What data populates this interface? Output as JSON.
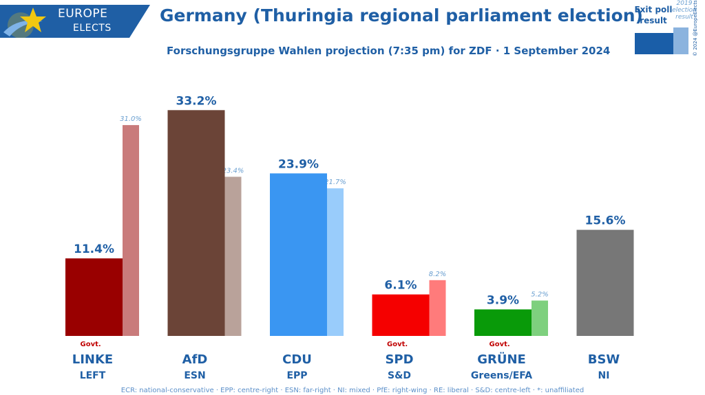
{
  "logo": {
    "line1": "EUROPE",
    "line2": "ELECTS"
  },
  "header": {
    "title": "Germany (Thuringia regional parliament election)",
    "subtitle": "Forschungsgruppe Wahlen projection (7:35 pm) for ZDF · 1 September 2024"
  },
  "legend": {
    "exit_poll": "Exit poll result",
    "previous": "2019 election result"
  },
  "copyright": "© 2024 @EuropeElects",
  "footer": "ECR: national-conservative · EPP: centre-right · ESN: far-right · NI: mixed · PfE: right-wing · RE: liberal · S&D: centre-left · *: unaffiliated",
  "colors": {
    "title": "#1f5fa5",
    "govt": "#c00000",
    "prev_label": "#6a9fd0"
  },
  "chart_data": {
    "type": "bar",
    "categories": [
      "LINKE",
      "AfD",
      "CDU",
      "SPD",
      "GRÜNE",
      "BSW"
    ],
    "groups": [
      "LEFT",
      "ESN",
      "EPP",
      "S&D",
      "Greens/EFA",
      "NI"
    ],
    "series": [
      {
        "name": "Exit poll result",
        "values": [
          11.4,
          33.2,
          23.9,
          6.1,
          3.9,
          15.6
        ],
        "labels": [
          "11.4%",
          "33.2%",
          "23.9%",
          "6.1%",
          "3.9%",
          "15.6%"
        ]
      },
      {
        "name": "2019 election result",
        "values": [
          31.0,
          23.4,
          21.7,
          8.2,
          5.2,
          null
        ],
        "labels": [
          "31.0%",
          "23.4%",
          "21.7%",
          "8.2%",
          "5.2%",
          ""
        ]
      }
    ],
    "govt": [
      true,
      false,
      false,
      true,
      true,
      false
    ],
    "govt_label": "Govt.",
    "colors": {
      "current": [
        "#990000",
        "#6b4437",
        "#3a96f2",
        "#f50000",
        "#099a09",
        "#777777"
      ],
      "previous": [
        "#c97b7b",
        "#b9a29a",
        "#99ccfb",
        "#ff7b7b",
        "#7ed07e",
        ""
      ]
    },
    "ylim": [
      0,
      34
    ]
  }
}
